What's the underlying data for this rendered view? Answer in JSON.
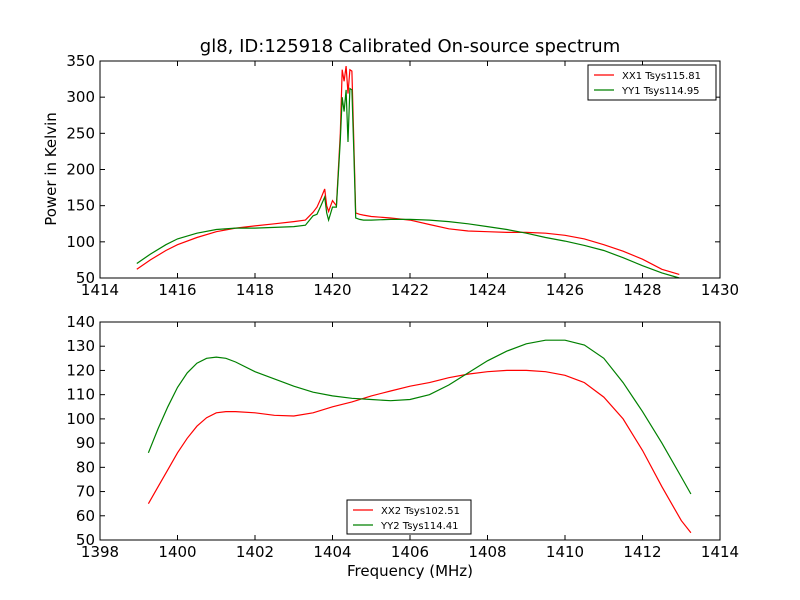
{
  "figure": {
    "title": "gl8, ID:125918 Calibrated On-source spectrum"
  },
  "chart_data": [
    {
      "type": "line",
      "title": "gl8, ID:125918 Calibrated On-source spectrum",
      "xlabel": "",
      "ylabel": "Power in Kelvin",
      "xlim": [
        1414,
        1430
      ],
      "ylim": [
        50,
        350
      ],
      "xticks": [
        1414,
        1416,
        1418,
        1420,
        1422,
        1424,
        1426,
        1428,
        1430
      ],
      "yticks": [
        50,
        100,
        150,
        200,
        250,
        300,
        350
      ],
      "xtick_labels": [
        "1414",
        "1416",
        "1418",
        "1420",
        "1422",
        "1424",
        "1426",
        "1428",
        "1430"
      ],
      "ytick_labels": [
        "50",
        "100",
        "150",
        "200",
        "250",
        "300",
        "350"
      ],
      "grid": false,
      "legend_position": "top-right",
      "series": [
        {
          "name": "XX1 Tsys115.81",
          "color": "#ff0000",
          "x": [
            1414.95,
            1415.3,
            1415.7,
            1416.0,
            1416.5,
            1417.0,
            1417.5,
            1418.0,
            1418.5,
            1419.0,
            1419.3,
            1419.5,
            1419.6,
            1419.7,
            1419.8,
            1419.85,
            1419.9,
            1420.0,
            1420.1,
            1420.2,
            1420.25,
            1420.3,
            1420.35,
            1420.4,
            1420.45,
            1420.5,
            1420.55,
            1420.6,
            1420.7,
            1420.8,
            1421.0,
            1421.5,
            1422.0,
            1422.5,
            1423.0,
            1423.5,
            1424.0,
            1424.5,
            1425.0,
            1425.5,
            1426.0,
            1426.5,
            1427.0,
            1427.5,
            1428.0,
            1428.5,
            1428.95
          ],
          "y": [
            62,
            75,
            88,
            96,
            106,
            114,
            119,
            122,
            125,
            128,
            130,
            141,
            148,
            160,
            173,
            150,
            142,
            157,
            150,
            250,
            338,
            322,
            343,
            305,
            338,
            336,
            240,
            140,
            138,
            137,
            135,
            133,
            130,
            124,
            118,
            115,
            114,
            113,
            113,
            112,
            109,
            104,
            96,
            87,
            76,
            62,
            55
          ]
        },
        {
          "name": "YY1 Tsys114.95",
          "color": "#008000",
          "x": [
            1414.95,
            1415.3,
            1415.7,
            1416.0,
            1416.5,
            1417.0,
            1417.5,
            1418.0,
            1418.5,
            1419.0,
            1419.3,
            1419.5,
            1419.6,
            1419.7,
            1419.8,
            1419.85,
            1419.9,
            1420.0,
            1420.1,
            1420.2,
            1420.25,
            1420.3,
            1420.35,
            1420.4,
            1420.45,
            1420.5,
            1420.55,
            1420.6,
            1420.7,
            1420.8,
            1421.0,
            1421.5,
            1422.0,
            1422.5,
            1423.0,
            1423.5,
            1424.0,
            1424.5,
            1425.0,
            1425.5,
            1426.0,
            1426.5,
            1427.0,
            1427.5,
            1428.0,
            1428.5,
            1428.95
          ],
          "y": [
            70,
            83,
            96,
            104,
            112,
            117,
            119,
            119,
            120,
            121,
            123,
            136,
            138,
            150,
            162,
            140,
            130,
            148,
            148,
            240,
            300,
            280,
            310,
            238,
            312,
            310,
            225,
            133,
            131,
            130,
            130,
            131,
            131,
            130,
            128,
            125,
            121,
            117,
            112,
            106,
            101,
            95,
            88,
            78,
            67,
            57,
            50
          ]
        }
      ]
    },
    {
      "type": "line",
      "title": "",
      "xlabel": "Frequency (MHz)",
      "ylabel": "",
      "xlim": [
        1398,
        1414
      ],
      "ylim": [
        50,
        140
      ],
      "xticks": [
        1398,
        1400,
        1402,
        1404,
        1406,
        1408,
        1410,
        1412,
        1414
      ],
      "yticks": [
        50,
        60,
        70,
        80,
        90,
        100,
        110,
        120,
        130,
        140
      ],
      "xtick_labels": [
        "1398",
        "1400",
        "1402",
        "1404",
        "1406",
        "1408",
        "1410",
        "1412",
        "1414"
      ],
      "ytick_labels": [
        "50",
        "60",
        "70",
        "80",
        "90",
        "100",
        "110",
        "120",
        "130",
        "140"
      ],
      "grid": false,
      "legend_position": "bottom-center",
      "series": [
        {
          "name": "XX2 Tsys102.51",
          "color": "#ff0000",
          "x": [
            1399.25,
            1399.5,
            1399.75,
            1400.0,
            1400.25,
            1400.5,
            1400.75,
            1401.0,
            1401.25,
            1401.5,
            1402.0,
            1402.5,
            1403.0,
            1403.5,
            1404.0,
            1404.5,
            1405.0,
            1405.5,
            1406.0,
            1406.5,
            1407.0,
            1407.5,
            1408.0,
            1408.5,
            1409.0,
            1409.5,
            1410.0,
            1410.5,
            1411.0,
            1411.5,
            1412.0,
            1412.5,
            1413.0,
            1413.25
          ],
          "y": [
            65,
            72,
            79,
            86,
            92,
            97,
            100.5,
            102.5,
            103,
            103,
            102.5,
            101.5,
            101.2,
            102.5,
            105,
            107,
            109.5,
            111.5,
            113.5,
            115,
            117,
            118.5,
            119.5,
            120,
            120,
            119.5,
            118,
            115,
            109,
            100,
            87,
            72,
            58,
            53
          ]
        },
        {
          "name": "YY2 Tsys114.41",
          "color": "#008000",
          "x": [
            1399.25,
            1399.5,
            1399.75,
            1400.0,
            1400.25,
            1400.5,
            1400.75,
            1401.0,
            1401.25,
            1401.5,
            1402.0,
            1402.5,
            1403.0,
            1403.5,
            1404.0,
            1404.5,
            1405.0,
            1405.5,
            1406.0,
            1406.5,
            1407.0,
            1407.5,
            1408.0,
            1408.5,
            1409.0,
            1409.5,
            1410.0,
            1410.5,
            1411.0,
            1411.5,
            1412.0,
            1412.5,
            1413.0,
            1413.25
          ],
          "y": [
            86,
            96,
            105,
            113,
            119,
            123,
            125,
            125.5,
            125,
            123.5,
            119.5,
            116.5,
            113.5,
            111,
            109.5,
            108.5,
            108,
            107.5,
            108,
            110,
            114,
            119,
            124,
            128,
            131,
            132.5,
            132.5,
            130.5,
            125,
            115,
            103,
            90,
            76,
            69
          ]
        }
      ]
    }
  ]
}
